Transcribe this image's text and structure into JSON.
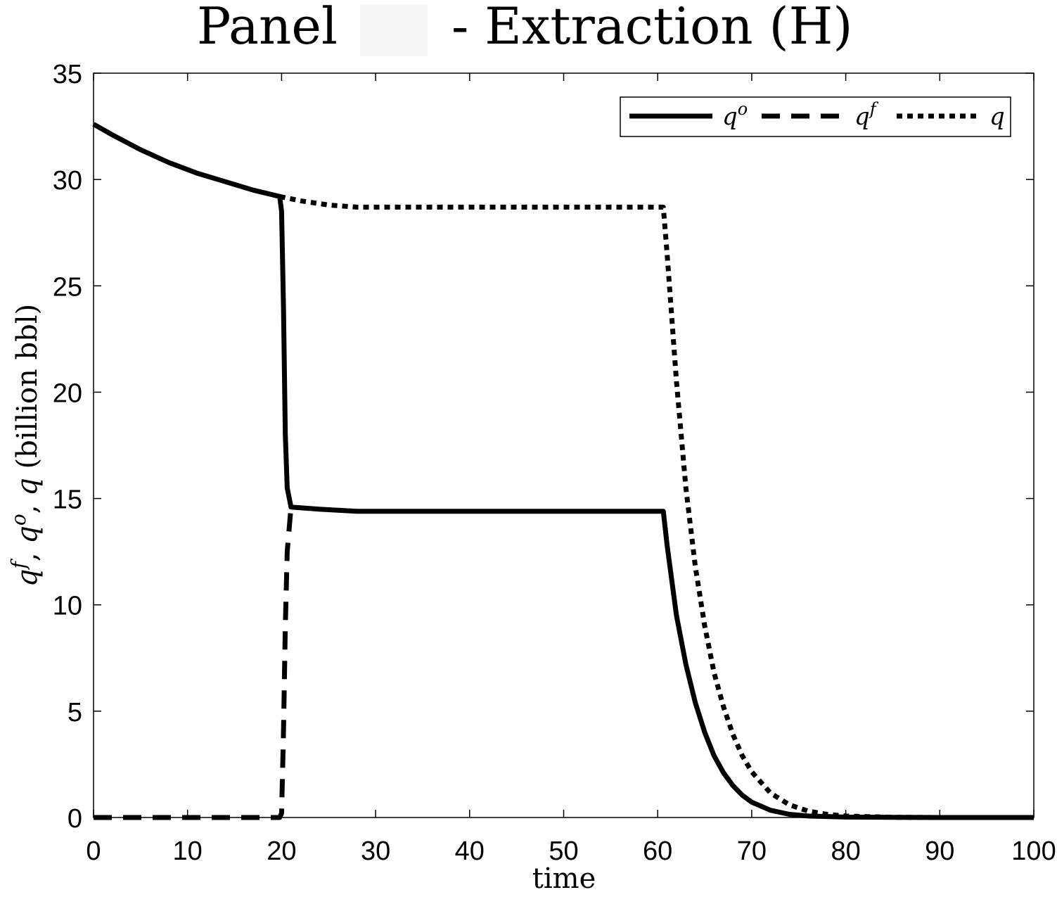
{
  "chart_data": {
    "type": "line",
    "title_left": "Panel",
    "title_right": "- Extraction (H)",
    "xlabel": "time",
    "ylabel": {
      "parts": [
        {
          "t": "q",
          "sup": "f",
          "sep": ", "
        },
        {
          "t": "q",
          "sup": "o",
          "sep": ", "
        },
        {
          "t": "q",
          "sup": "",
          "sep": " "
        }
      ],
      "units": "(billion bbl)"
    },
    "xlim": [
      0,
      100
    ],
    "ylim": [
      0,
      35
    ],
    "x_tick_labels": [
      "0",
      "10",
      "20",
      "30",
      "40",
      "50",
      "60",
      "70",
      "80",
      "90",
      "100"
    ],
    "y_tick_labels": [
      "0",
      "5",
      "10",
      "15",
      "20",
      "25",
      "30",
      "35"
    ],
    "grid": false,
    "legend_position": "top-right",
    "series": [
      {
        "name": "q^o",
        "legend_base": "q",
        "legend_sup": "o",
        "style": "solid",
        "points": [
          [
            0,
            32.6
          ],
          [
            2,
            32.1
          ],
          [
            5,
            31.4
          ],
          [
            8,
            30.8
          ],
          [
            11,
            30.3
          ],
          [
            14,
            29.9
          ],
          [
            17,
            29.5
          ],
          [
            19.8,
            29.2
          ],
          [
            20,
            28.5
          ],
          [
            20.2,
            24.0
          ],
          [
            20.4,
            18.0
          ],
          [
            20.6,
            15.5
          ],
          [
            21,
            14.6
          ],
          [
            24,
            14.5
          ],
          [
            28,
            14.4
          ],
          [
            40,
            14.4
          ],
          [
            60.6,
            14.4
          ],
          [
            61,
            12.8
          ],
          [
            62,
            9.5
          ],
          [
            63,
            7.2
          ],
          [
            64,
            5.4
          ],
          [
            65,
            4.0
          ],
          [
            66,
            2.9
          ],
          [
            67,
            2.1
          ],
          [
            68,
            1.5
          ],
          [
            69,
            1.05
          ],
          [
            70,
            0.72
          ],
          [
            72,
            0.34
          ],
          [
            74,
            0.15
          ],
          [
            76,
            0.07
          ],
          [
            80,
            0.02
          ],
          [
            90,
            0.0
          ],
          [
            100,
            0.0
          ]
        ]
      },
      {
        "name": "q^f",
        "legend_base": "q",
        "legend_sup": "f",
        "style": "dashed",
        "points": [
          [
            0,
            0
          ],
          [
            19.8,
            0
          ],
          [
            20.0,
            0.2
          ],
          [
            20.2,
            4.0
          ],
          [
            20.4,
            9.0
          ],
          [
            20.6,
            12.5
          ],
          [
            21,
            14.6
          ]
        ]
      },
      {
        "name": "q",
        "legend_base": "q",
        "legend_sup": "",
        "style": "dotted",
        "points": [
          [
            19.8,
            29.2
          ],
          [
            22,
            29.0
          ],
          [
            25,
            28.8
          ],
          [
            28,
            28.7
          ],
          [
            40,
            28.7
          ],
          [
            60.6,
            28.7
          ],
          [
            61,
            26.5
          ],
          [
            62,
            20.5
          ],
          [
            63,
            15.5
          ],
          [
            64,
            11.8
          ],
          [
            65,
            9.0
          ],
          [
            66,
            6.8
          ],
          [
            67,
            5.2
          ],
          [
            68,
            3.9
          ],
          [
            69,
            2.9
          ],
          [
            70,
            2.15
          ],
          [
            72,
            1.15
          ],
          [
            74,
            0.6
          ],
          [
            76,
            0.3
          ],
          [
            78,
            0.15
          ],
          [
            80,
            0.07
          ],
          [
            85,
            0.01
          ],
          [
            90,
            0.0
          ],
          [
            100,
            0.0
          ]
        ]
      }
    ]
  }
}
